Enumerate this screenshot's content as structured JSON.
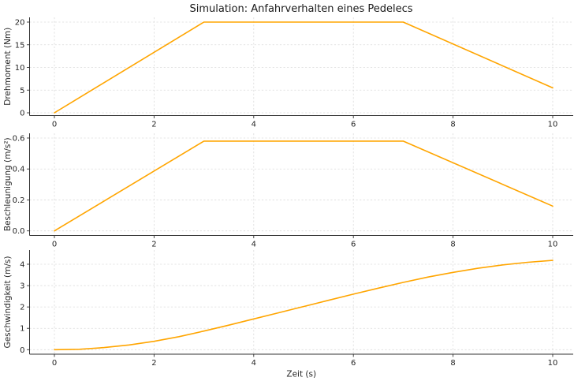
{
  "figure": {
    "title": "Simulation: Anfahrverhalten eines Pedelecs",
    "background": "#FFFFFF",
    "line_color": "#FFA500",
    "grid_color": "#DBDBDB",
    "spine_color": "#333333",
    "text_color": "#262626"
  },
  "chart_data": [
    {
      "type": "line",
      "series_name": "Drehmoment",
      "ylabel": "Drehmoment (Nm)",
      "xlabel": "",
      "x": [
        0,
        3,
        7,
        10
      ],
      "y": [
        0,
        20,
        20,
        5.5
      ],
      "xlim": [
        -0.5,
        10.5
      ],
      "ylim": [
        -0.7,
        21
      ],
      "xticks": {
        "values": [
          0,
          2,
          4,
          6,
          8,
          10
        ],
        "labels": [
          "0",
          "2",
          "4",
          "6",
          "8",
          "10"
        ]
      },
      "yticks": {
        "values": [
          0,
          5,
          10,
          15,
          20
        ],
        "labels": [
          "0",
          "5",
          "10",
          "15",
          "20"
        ]
      },
      "grid": true,
      "legend": "none"
    },
    {
      "type": "line",
      "series_name": "Beschleunigung",
      "ylabel": "Beschleunigung (m/s²)",
      "xlabel": "",
      "x": [
        0,
        3,
        7,
        10
      ],
      "y": [
        0,
        0.58,
        0.58,
        0.16
      ],
      "xlim": [
        -0.5,
        10.5
      ],
      "ylim": [
        -0.03,
        0.61
      ],
      "xticks": {
        "values": [
          0,
          2,
          4,
          6,
          8,
          10
        ],
        "labels": [
          "0",
          "2",
          "4",
          "6",
          "8",
          "10"
        ]
      },
      "yticks": {
        "values": [
          0,
          0.2,
          0.4,
          0.6
        ],
        "labels": [
          "0.0",
          "0.2",
          "0.4",
          "0.6"
        ]
      },
      "grid": true,
      "legend": "none"
    },
    {
      "type": "line",
      "series_name": "Geschwindigkeit",
      "ylabel": "Geschwindigkeit (m/s)",
      "xlabel": "Zeit (s)",
      "x": [
        0,
        0.5,
        1,
        1.5,
        2,
        2.5,
        3,
        3.5,
        4,
        4.5,
        5,
        5.5,
        6,
        6.5,
        7,
        7.5,
        8,
        8.5,
        9,
        9.5,
        10
      ],
      "y": [
        0,
        0.02,
        0.1,
        0.22,
        0.39,
        0.61,
        0.87,
        1.15,
        1.44,
        1.73,
        2.02,
        2.31,
        2.6,
        2.88,
        3.15,
        3.4,
        3.62,
        3.81,
        3.97,
        4.09,
        4.18
      ],
      "xlim": [
        -0.5,
        10.5
      ],
      "ylim": [
        -0.22,
        4.4
      ],
      "xticks": {
        "values": [
          0,
          2,
          4,
          6,
          8,
          10
        ],
        "labels": [
          "0",
          "2",
          "4",
          "6",
          "8",
          "10"
        ]
      },
      "yticks": {
        "values": [
          0,
          1,
          2,
          3,
          4
        ],
        "labels": [
          "0",
          "1",
          "2",
          "3",
          "4"
        ]
      },
      "grid": true,
      "legend": "none"
    }
  ]
}
